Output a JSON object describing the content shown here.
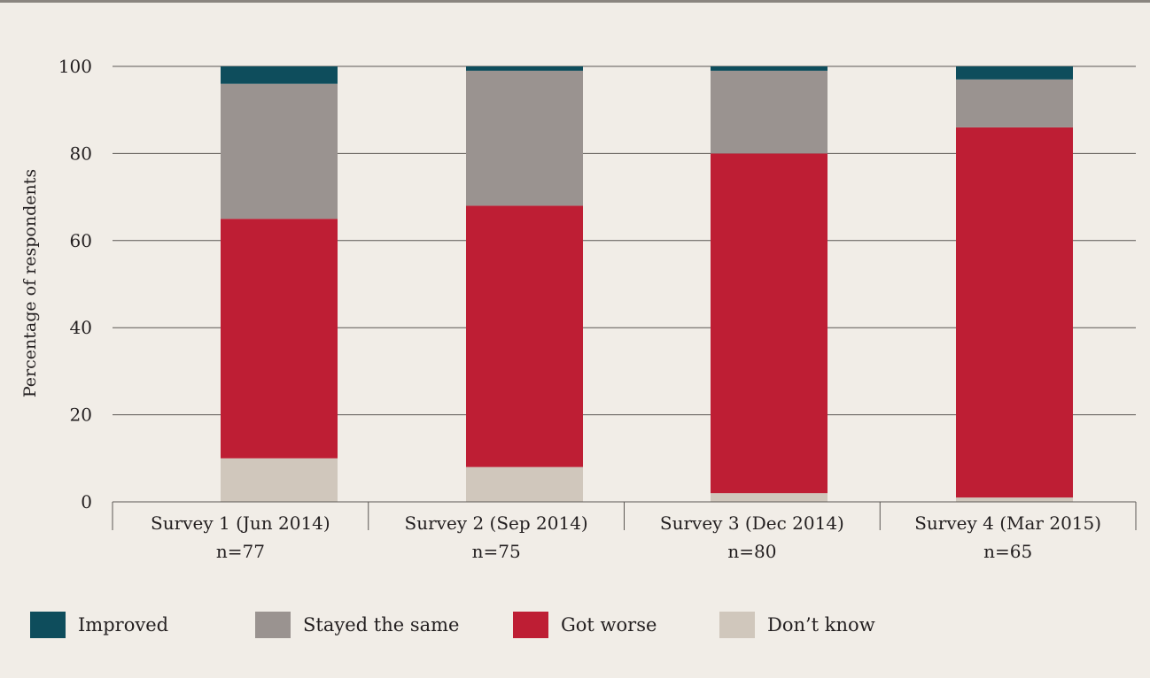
{
  "chart_data": {
    "type": "bar",
    "stacked": true,
    "categories": [
      "Survey 1 (Jun 2014)",
      "Survey 2 (Sep 2014)",
      "Survey 3 (Dec 2014)",
      "Survey 4 (Mar 2015)"
    ],
    "category_sublabels": [
      "n=77",
      "n=75",
      "n=80",
      "n=65"
    ],
    "series": [
      {
        "name": "Don’t know",
        "color": "#d0c7bc",
        "values": [
          10,
          8,
          2,
          1
        ]
      },
      {
        "name": "Got worse",
        "color": "#be1e34",
        "values": [
          55,
          60,
          78,
          85
        ]
      },
      {
        "name": "Stayed the same",
        "color": "#9a9390",
        "values": [
          31,
          31,
          19,
          11
        ]
      },
      {
        "name": "Improved",
        "color": "#0e4d5c",
        "values": [
          4,
          1,
          1,
          3
        ]
      }
    ],
    "ylabel": "Percentage of respondents",
    "xlabel": "",
    "ylim": [
      0,
      100
    ],
    "yticks": [
      "0",
      "20",
      "40",
      "60",
      "80",
      "100"
    ],
    "grid": true,
    "legend_position": "bottom"
  },
  "legend": [
    {
      "label": "Improved",
      "color": "#0e4d5c"
    },
    {
      "label": "Stayed the same",
      "color": "#9a9390"
    },
    {
      "label": "Got worse",
      "color": "#be1e34"
    },
    {
      "label": "Don’t know",
      "color": "#d0c7bc"
    }
  ]
}
